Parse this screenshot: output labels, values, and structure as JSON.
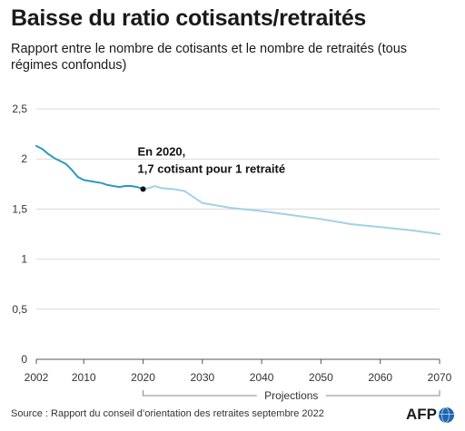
{
  "header": {
    "title": "Baisse du ratio cotisants/retraités",
    "subtitle": "Rapport entre le nombre de cotisants et le nombre de retraités (tous régimes confondus)"
  },
  "footer": {
    "source": "Source : Rapport du conseil d’orientation des retraites septembre 2022",
    "logo_text": "AFP"
  },
  "chart_data": {
    "type": "line",
    "title": "Baisse du ratio cotisants/retraités",
    "subtitle": "Rapport entre le nombre de cotisants et le nombre de retraités (tous régimes confondus)",
    "xlim": [
      2002,
      2070
    ],
    "ylim": [
      0,
      2.5
    ],
    "x_ticks": [
      "2002",
      "2010",
      "2020",
      "2030",
      "2040",
      "2050",
      "2060",
      "2070"
    ],
    "x_tick_values": [
      2002,
      2010,
      2020,
      2030,
      2040,
      2050,
      2060,
      2070
    ],
    "y_ticks": [
      "0",
      "0,5",
      "1",
      "1,5",
      "2",
      "2,5"
    ],
    "y_tick_values": [
      0,
      0.5,
      1,
      1.5,
      2,
      2.5
    ],
    "grid": "horizontal",
    "colors": {
      "observed": "#2a9bbd",
      "projection": "#9fd2e6",
      "grid": "#d9d9d9",
      "marker": "#111111"
    },
    "series": [
      {
        "values": [
          [
            2002,
            2.13
          ],
          [
            2003,
            2.1
          ],
          [
            2004,
            2.05
          ],
          [
            2005,
            2.01
          ],
          [
            2006,
            1.98
          ],
          [
            2007,
            1.95
          ],
          [
            2008,
            1.89
          ],
          [
            2009,
            1.82
          ],
          [
            2010,
            1.79
          ],
          [
            2011,
            1.78
          ],
          [
            2012,
            1.77
          ],
          [
            2013,
            1.76
          ],
          [
            2014,
            1.74
          ],
          [
            2015,
            1.73
          ],
          [
            2016,
            1.72
          ],
          [
            2017,
            1.73
          ],
          [
            2018,
            1.73
          ],
          [
            2019,
            1.72
          ],
          [
            2020,
            1.7
          ]
        ]
      },
      {
        "values": [
          [
            2020,
            1.7
          ],
          [
            2021,
            1.71
          ],
          [
            2022,
            1.73
          ],
          [
            2023,
            1.71
          ],
          [
            2025,
            1.7
          ],
          [
            2027,
            1.68
          ],
          [
            2030,
            1.56
          ],
          [
            2035,
            1.51
          ],
          [
            2040,
            1.48
          ],
          [
            2045,
            1.44
          ],
          [
            2050,
            1.4
          ],
          [
            2055,
            1.35
          ],
          [
            2060,
            1.32
          ],
          [
            2065,
            1.29
          ],
          [
            2070,
            1.25
          ]
        ]
      }
    ],
    "annotation": {
      "x": 2020,
      "y": 1.7,
      "line1": "En 2020,",
      "line2": "1,7 cotisant pour 1 retraité"
    },
    "projection_bracket": {
      "from": 2020,
      "to": 2070,
      "label": "Projections"
    }
  }
}
